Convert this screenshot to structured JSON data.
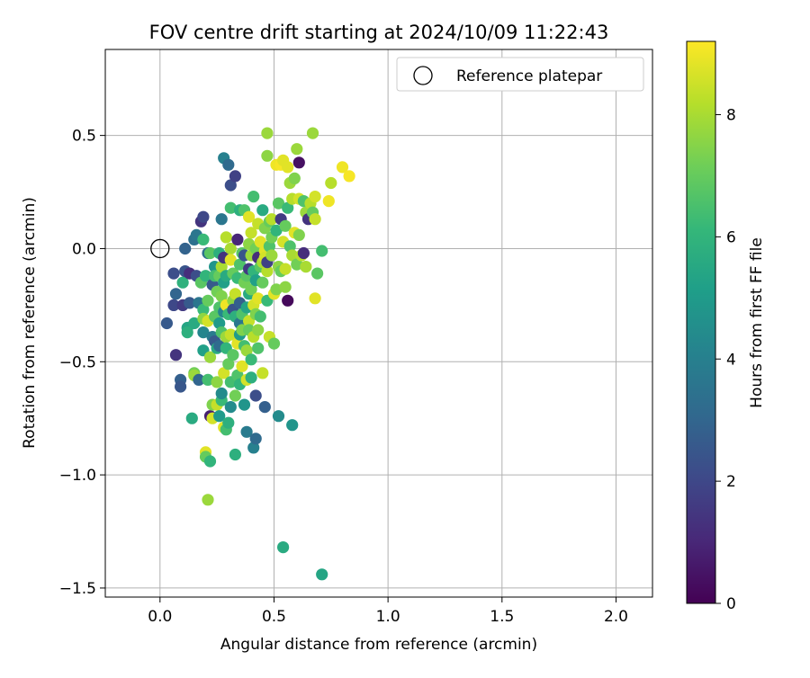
{
  "chart_data": {
    "type": "scatter",
    "title": "FOV centre drift starting at 2024/10/09 11:22:43",
    "xlabel": "Angular distance from reference (arcmin)",
    "ylabel": "Rotation from reference (arcmin)",
    "xlim": [
      -0.24,
      2.16
    ],
    "ylim": [
      -1.54,
      0.88
    ],
    "xticks": [
      0.0,
      0.5,
      1.0,
      1.5,
      2.0
    ],
    "xtick_labels": [
      "0.0",
      "0.5",
      "1.0",
      "1.5",
      "2.0"
    ],
    "yticks": [
      0.5,
      0.0,
      -0.5,
      -1.0,
      -1.5
    ],
    "ytick_labels": [
      "0.5",
      "0.0",
      "−0.5",
      "−1.0",
      "−1.5"
    ],
    "grid": true,
    "legend": {
      "placement": "top-right",
      "entries": [
        "Reference platepar"
      ]
    },
    "reference_point": {
      "x": 0.0,
      "y": 0.0,
      "label": "Reference platepar"
    },
    "colorbar": {
      "label": "Hours from first FF file",
      "min": 0,
      "max": 9.2,
      "ticks": [
        0,
        2,
        4,
        6,
        8
      ],
      "tick_labels": [
        "0",
        "2",
        "4",
        "6",
        "8"
      ],
      "colormap": "viridis",
      "colors": [
        "#440154",
        "#482878",
        "#3e4989",
        "#31688e",
        "#26828e",
        "#1f9e89",
        "#35b779",
        "#6ece58",
        "#b5de2b",
        "#fde725"
      ]
    },
    "points": [
      {
        "x": 0.03,
        "y": -0.33,
        "c": 2.6
      },
      {
        "x": 0.06,
        "y": -0.11,
        "c": 2.2
      },
      {
        "x": 0.06,
        "y": -0.25,
        "c": 2.0
      },
      {
        "x": 0.07,
        "y": -0.47,
        "c": 1.4
      },
      {
        "x": 0.07,
        "y": -0.2,
        "c": 3.0
      },
      {
        "x": 0.09,
        "y": -0.58,
        "c": 2.8
      },
      {
        "x": 0.09,
        "y": -0.61,
        "c": 2.5
      },
      {
        "x": 0.1,
        "y": -0.15,
        "c": 5.9
      },
      {
        "x": 0.1,
        "y": -0.25,
        "c": 1.6
      },
      {
        "x": 0.11,
        "y": -0.1,
        "c": 2.4
      },
      {
        "x": 0.11,
        "y": 0.0,
        "c": 2.9
      },
      {
        "x": 0.12,
        "y": -0.35,
        "c": 5.4
      },
      {
        "x": 0.12,
        "y": -0.37,
        "c": 5.8
      },
      {
        "x": 0.13,
        "y": -0.11,
        "c": 1.2
      },
      {
        "x": 0.13,
        "y": -0.24,
        "c": 2.6
      },
      {
        "x": 0.14,
        "y": -0.75,
        "c": 5.6
      },
      {
        "x": 0.15,
        "y": 0.04,
        "c": 3.4
      },
      {
        "x": 0.15,
        "y": -0.33,
        "c": 5.6
      },
      {
        "x": 0.15,
        "y": -0.55,
        "c": 7.2
      },
      {
        "x": 0.15,
        "y": -0.56,
        "c": 7.8
      },
      {
        "x": 0.16,
        "y": 0.06,
        "c": 3.6
      },
      {
        "x": 0.16,
        "y": -0.12,
        "c": 2.2
      },
      {
        "x": 0.17,
        "y": -0.24,
        "c": 3.6
      },
      {
        "x": 0.17,
        "y": -0.58,
        "c": 3.0
      },
      {
        "x": 0.18,
        "y": 0.12,
        "c": 1.4
      },
      {
        "x": 0.18,
        "y": -0.15,
        "c": 6.8
      },
      {
        "x": 0.19,
        "y": 0.14,
        "c": 2.0
      },
      {
        "x": 0.19,
        "y": 0.04,
        "c": 6.2
      },
      {
        "x": 0.19,
        "y": -0.27,
        "c": 6.2
      },
      {
        "x": 0.19,
        "y": -0.31,
        "c": 7.6
      },
      {
        "x": 0.19,
        "y": -0.37,
        "c": 4.2
      },
      {
        "x": 0.19,
        "y": -0.45,
        "c": 5.2
      },
      {
        "x": 0.2,
        "y": -0.9,
        "c": 8.8
      },
      {
        "x": 0.2,
        "y": -0.92,
        "c": 7.0
      },
      {
        "x": 0.2,
        "y": -0.12,
        "c": 6.0
      },
      {
        "x": 0.21,
        "y": -1.11,
        "c": 7.8
      },
      {
        "x": 0.21,
        "y": -0.02,
        "c": 3.4
      },
      {
        "x": 0.21,
        "y": -0.23,
        "c": 7.0
      },
      {
        "x": 0.21,
        "y": -0.58,
        "c": 6.4
      },
      {
        "x": 0.21,
        "y": -0.32,
        "c": 8.6
      },
      {
        "x": 0.22,
        "y": -0.74,
        "c": 0.8
      },
      {
        "x": 0.22,
        "y": -0.94,
        "c": 6.0
      },
      {
        "x": 0.22,
        "y": -0.48,
        "c": 7.8
      },
      {
        "x": 0.22,
        "y": -0.02,
        "c": 6.8
      },
      {
        "x": 0.23,
        "y": -0.39,
        "c": 3.8
      },
      {
        "x": 0.23,
        "y": -0.75,
        "c": 8.6
      },
      {
        "x": 0.23,
        "y": -0.69,
        "c": 7.4
      },
      {
        "x": 0.23,
        "y": -0.16,
        "c": 2.6
      },
      {
        "x": 0.24,
        "y": -0.3,
        "c": 6.8
      },
      {
        "x": 0.24,
        "y": -0.41,
        "c": 2.6
      },
      {
        "x": 0.24,
        "y": -0.08,
        "c": 4.8
      },
      {
        "x": 0.24,
        "y": -0.12,
        "c": 6.4
      },
      {
        "x": 0.25,
        "y": -0.44,
        "c": 5.6
      },
      {
        "x": 0.25,
        "y": -0.59,
        "c": 7.6
      },
      {
        "x": 0.25,
        "y": -0.69,
        "c": 8.4
      },
      {
        "x": 0.25,
        "y": -0.19,
        "c": 7.2
      },
      {
        "x": 0.26,
        "y": -0.12,
        "c": 7.0
      },
      {
        "x": 0.26,
        "y": -0.02,
        "c": 5.8
      },
      {
        "x": 0.26,
        "y": -0.26,
        "c": 6.6
      },
      {
        "x": 0.26,
        "y": -0.43,
        "c": 3.2
      },
      {
        "x": 0.26,
        "y": -0.33,
        "c": 5.0
      },
      {
        "x": 0.26,
        "y": -0.74,
        "c": 5.0
      },
      {
        "x": 0.27,
        "y": 0.13,
        "c": 3.6
      },
      {
        "x": 0.27,
        "y": -0.08,
        "c": 8.0
      },
      {
        "x": 0.27,
        "y": -0.67,
        "c": 6.2
      },
      {
        "x": 0.27,
        "y": -0.21,
        "c": 7.4
      },
      {
        "x": 0.27,
        "y": -0.37,
        "c": 6.6
      },
      {
        "x": 0.27,
        "y": -0.64,
        "c": 4.4
      },
      {
        "x": 0.28,
        "y": -0.79,
        "c": 8.8
      },
      {
        "x": 0.28,
        "y": -0.55,
        "c": 8.6
      },
      {
        "x": 0.28,
        "y": -0.04,
        "c": 1.4
      },
      {
        "x": 0.28,
        "y": 0.4,
        "c": 4.0
      },
      {
        "x": 0.28,
        "y": -0.28,
        "c": 4.2
      },
      {
        "x": 0.28,
        "y": -0.15,
        "c": 5.2
      },
      {
        "x": 0.29,
        "y": -0.25,
        "c": 9.0
      },
      {
        "x": 0.29,
        "y": -0.39,
        "c": 7.8
      },
      {
        "x": 0.29,
        "y": 0.05,
        "c": 8.2
      },
      {
        "x": 0.29,
        "y": -0.12,
        "c": 5.6
      },
      {
        "x": 0.29,
        "y": -0.44,
        "c": 6.0
      },
      {
        "x": 0.29,
        "y": -0.8,
        "c": 6.4
      },
      {
        "x": 0.3,
        "y": 0.37,
        "c": 3.2
      },
      {
        "x": 0.3,
        "y": -0.29,
        "c": 6.2
      },
      {
        "x": 0.3,
        "y": -0.51,
        "c": 7.0
      },
      {
        "x": 0.3,
        "y": -0.77,
        "c": 5.8
      },
      {
        "x": 0.31,
        "y": -0.59,
        "c": 6.4
      },
      {
        "x": 0.31,
        "y": 0.28,
        "c": 2.2
      },
      {
        "x": 0.31,
        "y": 0.0,
        "c": 8.0
      },
      {
        "x": 0.31,
        "y": -0.05,
        "c": 8.8
      },
      {
        "x": 0.31,
        "y": -0.38,
        "c": 8.4
      },
      {
        "x": 0.31,
        "y": -0.7,
        "c": 4.4
      },
      {
        "x": 0.31,
        "y": 0.18,
        "c": 6.4
      },
      {
        "x": 0.32,
        "y": -0.23,
        "c": 7.6
      },
      {
        "x": 0.32,
        "y": -0.11,
        "c": 7.0
      },
      {
        "x": 0.32,
        "y": -0.47,
        "c": 6.8
      },
      {
        "x": 0.32,
        "y": -0.27,
        "c": 2.4
      },
      {
        "x": 0.33,
        "y": -0.65,
        "c": 7.2
      },
      {
        "x": 0.33,
        "y": 0.32,
        "c": 1.8
      },
      {
        "x": 0.33,
        "y": -0.2,
        "c": 8.4
      },
      {
        "x": 0.33,
        "y": -0.3,
        "c": 5.8
      },
      {
        "x": 0.33,
        "y": -0.91,
        "c": 5.8
      },
      {
        "x": 0.34,
        "y": -0.42,
        "c": 8.8
      },
      {
        "x": 0.34,
        "y": -0.56,
        "c": 6.6
      },
      {
        "x": 0.34,
        "y": 0.04,
        "c": 1.0
      },
      {
        "x": 0.34,
        "y": -0.13,
        "c": 6.2
      },
      {
        "x": 0.35,
        "y": -0.33,
        "c": 3.6
      },
      {
        "x": 0.35,
        "y": -0.38,
        "c": 5.0
      },
      {
        "x": 0.35,
        "y": 0.17,
        "c": 5.8
      },
      {
        "x": 0.35,
        "y": -0.6,
        "c": 6.0
      },
      {
        "x": 0.35,
        "y": -0.07,
        "c": 6.6
      },
      {
        "x": 0.35,
        "y": -0.24,
        "c": 2.8
      },
      {
        "x": 0.36,
        "y": -0.02,
        "c": 6.8
      },
      {
        "x": 0.36,
        "y": -0.52,
        "c": 8.8
      },
      {
        "x": 0.36,
        "y": -0.36,
        "c": 7.4
      },
      {
        "x": 0.36,
        "y": -0.29,
        "c": 6.6
      },
      {
        "x": 0.37,
        "y": -0.69,
        "c": 4.8
      },
      {
        "x": 0.37,
        "y": 0.17,
        "c": 6.6
      },
      {
        "x": 0.37,
        "y": -0.15,
        "c": 7.2
      },
      {
        "x": 0.37,
        "y": -0.43,
        "c": 6.4
      },
      {
        "x": 0.37,
        "y": -0.03,
        "c": 2.4
      },
      {
        "x": 0.38,
        "y": -0.58,
        "c": 8.6
      },
      {
        "x": 0.38,
        "y": -0.12,
        "c": 6.8
      },
      {
        "x": 0.38,
        "y": -0.26,
        "c": 5.4
      },
      {
        "x": 0.38,
        "y": -0.81,
        "c": 3.8
      },
      {
        "x": 0.38,
        "y": -0.45,
        "c": 7.8
      },
      {
        "x": 0.39,
        "y": 0.14,
        "c": 8.8
      },
      {
        "x": 0.39,
        "y": 0.02,
        "c": 7.6
      },
      {
        "x": 0.39,
        "y": -0.2,
        "c": 5.6
      },
      {
        "x": 0.39,
        "y": -0.32,
        "c": 8.4
      },
      {
        "x": 0.39,
        "y": -0.09,
        "c": 1.6
      },
      {
        "x": 0.39,
        "y": -0.36,
        "c": 7.0
      },
      {
        "x": 0.4,
        "y": -0.57,
        "c": 5.8
      },
      {
        "x": 0.4,
        "y": -0.03,
        "c": 7.8
      },
      {
        "x": 0.4,
        "y": 0.07,
        "c": 8.4
      },
      {
        "x": 0.4,
        "y": -0.49,
        "c": 6.2
      },
      {
        "x": 0.4,
        "y": -0.18,
        "c": 7.2
      },
      {
        "x": 0.41,
        "y": -0.88,
        "c": 4.0
      },
      {
        "x": 0.41,
        "y": 0.23,
        "c": 6.4
      },
      {
        "x": 0.41,
        "y": -0.25,
        "c": 8.6
      },
      {
        "x": 0.41,
        "y": -0.1,
        "c": 6.0
      },
      {
        "x": 0.41,
        "y": -0.39,
        "c": 8.2
      },
      {
        "x": 0.42,
        "y": -0.65,
        "c": 2.2
      },
      {
        "x": 0.42,
        "y": -0.29,
        "c": 7.4
      },
      {
        "x": 0.42,
        "y": 0.0,
        "c": 7.2
      },
      {
        "x": 0.42,
        "y": -0.14,
        "c": 5.2
      },
      {
        "x": 0.42,
        "y": -0.84,
        "c": 3.2
      },
      {
        "x": 0.43,
        "y": 0.11,
        "c": 8.4
      },
      {
        "x": 0.43,
        "y": -0.04,
        "c": 1.2
      },
      {
        "x": 0.43,
        "y": -0.44,
        "c": 6.6
      },
      {
        "x": 0.43,
        "y": -0.22,
        "c": 8.8
      },
      {
        "x": 0.43,
        "y": -0.36,
        "c": 7.6
      },
      {
        "x": 0.44,
        "y": 0.03,
        "c": 8.8
      },
      {
        "x": 0.44,
        "y": -0.08,
        "c": 6.8
      },
      {
        "x": 0.44,
        "y": -0.3,
        "c": 6.4
      },
      {
        "x": 0.45,
        "y": -0.55,
        "c": 8.4
      },
      {
        "x": 0.45,
        "y": -0.06,
        "c": 8.0
      },
      {
        "x": 0.45,
        "y": 0.17,
        "c": 5.6
      },
      {
        "x": 0.45,
        "y": -0.15,
        "c": 7.0
      },
      {
        "x": 0.46,
        "y": -0.7,
        "c": 2.8
      },
      {
        "x": 0.46,
        "y": -0.01,
        "c": 8.8
      },
      {
        "x": 0.46,
        "y": -0.04,
        "c": 8.6
      },
      {
        "x": 0.46,
        "y": 0.09,
        "c": 7.4
      },
      {
        "x": 0.47,
        "y": 0.51,
        "c": 7.8
      },
      {
        "x": 0.47,
        "y": 0.41,
        "c": 7.6
      },
      {
        "x": 0.47,
        "y": -0.23,
        "c": 6.2
      },
      {
        "x": 0.47,
        "y": -0.1,
        "c": 8.2
      },
      {
        "x": 0.47,
        "y": -0.06,
        "c": 1.8
      },
      {
        "x": 0.48,
        "y": 0.01,
        "c": 6.6
      },
      {
        "x": 0.48,
        "y": -0.39,
        "c": 8.4
      },
      {
        "x": 0.48,
        "y": 0.12,
        "c": 7.0
      },
      {
        "x": 0.49,
        "y": 0.13,
        "c": 8.2
      },
      {
        "x": 0.49,
        "y": -0.03,
        "c": 7.8
      },
      {
        "x": 0.49,
        "y": 0.05,
        "c": 7.2
      },
      {
        "x": 0.5,
        "y": -0.2,
        "c": 8.8
      },
      {
        "x": 0.5,
        "y": -0.42,
        "c": 7.0
      },
      {
        "x": 0.51,
        "y": 0.37,
        "c": 9.0
      },
      {
        "x": 0.51,
        "y": 0.08,
        "c": 6.0
      },
      {
        "x": 0.51,
        "y": -0.18,
        "c": 7.4
      },
      {
        "x": 0.52,
        "y": -0.74,
        "c": 4.4
      },
      {
        "x": 0.52,
        "y": 0.2,
        "c": 6.8
      },
      {
        "x": 0.52,
        "y": -0.08,
        "c": 7.6
      },
      {
        "x": 0.53,
        "y": 0.37,
        "c": 9.1
      },
      {
        "x": 0.53,
        "y": 0.13,
        "c": 1.6
      },
      {
        "x": 0.53,
        "y": -0.1,
        "c": 7.0
      },
      {
        "x": 0.54,
        "y": 0.39,
        "c": 8.8
      },
      {
        "x": 0.54,
        "y": -1.32,
        "c": 5.6
      },
      {
        "x": 0.54,
        "y": 0.03,
        "c": 8.6
      },
      {
        "x": 0.55,
        "y": -0.17,
        "c": 7.6
      },
      {
        "x": 0.55,
        "y": 0.1,
        "c": 7.0
      },
      {
        "x": 0.55,
        "y": -0.09,
        "c": 8.4
      },
      {
        "x": 0.56,
        "y": 0.36,
        "c": 8.8
      },
      {
        "x": 0.56,
        "y": -0.23,
        "c": 0.2
      },
      {
        "x": 0.56,
        "y": 0.18,
        "c": 6.2
      },
      {
        "x": 0.57,
        "y": 0.29,
        "c": 7.8
      },
      {
        "x": 0.57,
        "y": 0.01,
        "c": 6.6
      },
      {
        "x": 0.58,
        "y": -0.78,
        "c": 4.8
      },
      {
        "x": 0.58,
        "y": 0.22,
        "c": 8.2
      },
      {
        "x": 0.58,
        "y": -0.03,
        "c": 8.0
      },
      {
        "x": 0.59,
        "y": 0.31,
        "c": 7.4
      },
      {
        "x": 0.59,
        "y": 0.07,
        "c": 8.8
      },
      {
        "x": 0.6,
        "y": 0.44,
        "c": 7.8
      },
      {
        "x": 0.6,
        "y": -0.07,
        "c": 7.2
      },
      {
        "x": 0.61,
        "y": 0.38,
        "c": 0.4
      },
      {
        "x": 0.61,
        "y": 0.22,
        "c": 8.6
      },
      {
        "x": 0.61,
        "y": 0.06,
        "c": 7.4
      },
      {
        "x": 0.62,
        "y": -0.03,
        "c": 8.2
      },
      {
        "x": 0.63,
        "y": -0.02,
        "c": 1.2
      },
      {
        "x": 0.63,
        "y": 0.21,
        "c": 6.6
      },
      {
        "x": 0.64,
        "y": 0.16,
        "c": 7.8
      },
      {
        "x": 0.64,
        "y": -0.08,
        "c": 8.0
      },
      {
        "x": 0.65,
        "y": 0.13,
        "c": 1.4
      },
      {
        "x": 0.66,
        "y": 0.2,
        "c": 8.2
      },
      {
        "x": 0.67,
        "y": 0.16,
        "c": 7.0
      },
      {
        "x": 0.67,
        "y": 0.51,
        "c": 7.8
      },
      {
        "x": 0.68,
        "y": 0.13,
        "c": 8.4
      },
      {
        "x": 0.68,
        "y": 0.23,
        "c": 8.6
      },
      {
        "x": 0.68,
        "y": -0.22,
        "c": 8.8
      },
      {
        "x": 0.69,
        "y": -0.11,
        "c": 6.8
      },
      {
        "x": 0.71,
        "y": -1.44,
        "c": 5.4
      },
      {
        "x": 0.71,
        "y": -0.01,
        "c": 6.4
      },
      {
        "x": 0.74,
        "y": 0.21,
        "c": 9.0
      },
      {
        "x": 0.75,
        "y": 0.29,
        "c": 8.2
      },
      {
        "x": 0.8,
        "y": 0.36,
        "c": 9.0
      },
      {
        "x": 0.83,
        "y": 0.32,
        "c": 9.1
      }
    ]
  }
}
